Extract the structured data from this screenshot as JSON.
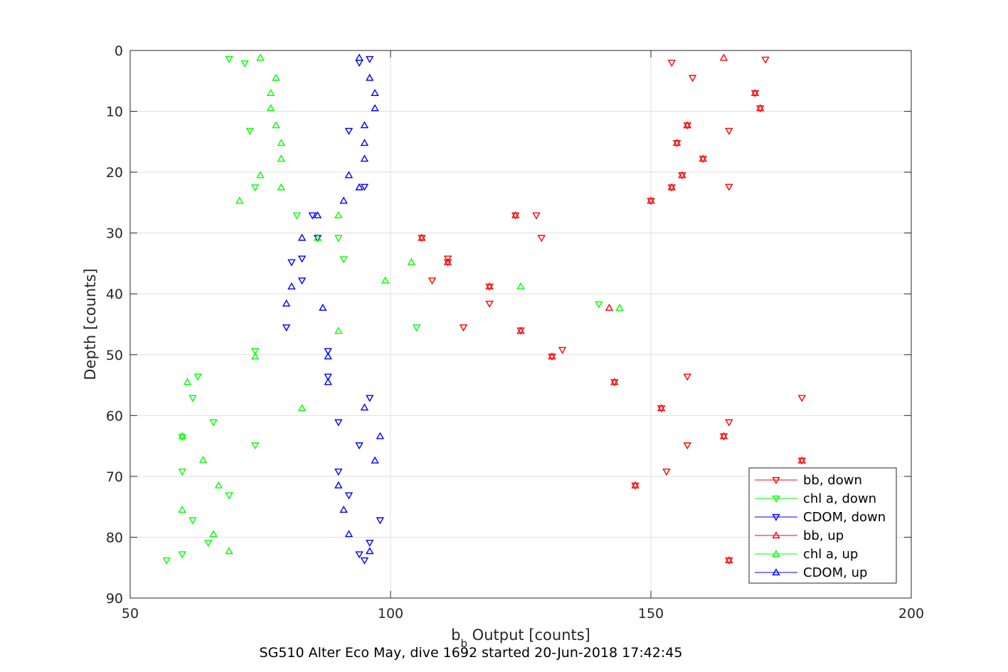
{
  "chart_data": {
    "type": "scatter",
    "xlabel": {
      "prefix": "b",
      "subscript": "b",
      "suffix": " Output [counts]"
    },
    "ylabel": "Depth [counts]",
    "footer": "SG510 Alter Eco May, dive 1692 started 20-Jun-2018 17:42:45",
    "xlim": [
      50,
      200
    ],
    "ylim": [
      0,
      90
    ],
    "y_reversed": true,
    "grid": true,
    "legend_position": "bottom-right",
    "x_ticks": [
      "50",
      "100",
      "150",
      "200"
    ],
    "y_ticks": [
      "0",
      "10",
      "20",
      "30",
      "40",
      "50",
      "60",
      "70",
      "80",
      "90"
    ],
    "series": [
      {
        "name": "bb, down",
        "color": "#ff0000",
        "marker": "triangle-down",
        "x": [
          154,
          172,
          158,
          170,
          171,
          157,
          165,
          155,
          160,
          156,
          154,
          165,
          150,
          128,
          124,
          129,
          106,
          111,
          111,
          108,
          119,
          119,
          114,
          125,
          133,
          131,
          157,
          143,
          179,
          152,
          165,
          157,
          164,
          179,
          153,
          147,
          170,
          165
        ],
        "y": [
          2.0,
          1.5,
          4.5,
          7.0,
          9.5,
          12.3,
          13.2,
          15.2,
          17.8,
          20.5,
          22.5,
          22.4,
          24.7,
          27.1,
          27.1,
          30.8,
          30.8,
          34.2,
          34.8,
          37.8,
          38.8,
          41.6,
          45.5,
          46.0,
          49.2,
          50.3,
          53.6,
          54.5,
          57.1,
          58.8,
          61.1,
          64.9,
          63.4,
          67.4,
          69.2,
          71.5,
          82.6,
          83.8
        ]
      },
      {
        "name": "chl a, down",
        "color": "#00ff00",
        "marker": "triangle-down",
        "x": [
          69,
          72,
          73,
          74,
          82,
          90,
          91,
          105,
          140,
          63,
          74,
          62,
          66,
          60,
          74,
          60,
          69,
          62,
          65,
          60,
          57
        ],
        "y": [
          1.4,
          2.1,
          13.2,
          22.5,
          27.1,
          30.8,
          34.3,
          45.5,
          41.7,
          53.6,
          49.4,
          57.1,
          61.1,
          69.2,
          64.9,
          82.8,
          73.1,
          77.2,
          80.9,
          63.5,
          83.8
        ]
      },
      {
        "name": "CDOM, down",
        "color": "#0000ff",
        "marker": "triangle-down",
        "x": [
          94,
          96,
          92,
          95,
          85,
          86,
          80,
          83,
          83,
          81,
          88,
          88,
          90,
          96,
          94,
          90,
          92,
          98,
          96,
          94,
          95
        ],
        "y": [
          2.0,
          1.4,
          13.2,
          22.4,
          27.1,
          30.8,
          45.5,
          37.8,
          34.2,
          34.8,
          49.4,
          53.6,
          61.1,
          57.1,
          64.9,
          69.2,
          73.1,
          77.2,
          80.9,
          82.8,
          83.8
        ]
      },
      {
        "name": "bb, up",
        "color": "#ff0000",
        "marker": "triangle-up",
        "x": [
          164,
          157,
          170,
          171,
          157,
          155,
          160,
          156,
          154,
          150,
          124,
          106,
          111,
          119,
          142,
          125,
          131,
          143,
          152,
          164,
          179,
          147,
          170,
          165
        ],
        "y": [
          1.2,
          12.3,
          7.0,
          9.5,
          12.3,
          15.2,
          17.8,
          20.5,
          22.5,
          24.7,
          27.1,
          30.8,
          34.8,
          38.8,
          42.3,
          46.1,
          50.3,
          54.5,
          58.8,
          63.4,
          67.4,
          71.5,
          82.6,
          83.8
        ]
      },
      {
        "name": "chl a, up",
        "color": "#00ff00",
        "marker": "triangle-up",
        "x": [
          75,
          78,
          77,
          77,
          78,
          79,
          79,
          75,
          79,
          71,
          90,
          86,
          104,
          99,
          125,
          144,
          90,
          74,
          61,
          83,
          60,
          64,
          67,
          60,
          66,
          69
        ],
        "y": [
          1.2,
          4.5,
          7.0,
          9.5,
          12.3,
          15.2,
          17.8,
          20.5,
          22.5,
          24.7,
          27.1,
          30.8,
          34.8,
          37.8,
          38.8,
          42.3,
          46.1,
          50.3,
          54.5,
          58.8,
          63.4,
          67.3,
          71.5,
          75.5,
          79.5,
          82.3
        ]
      },
      {
        "name": "CDOM, up",
        "color": "#0000ff",
        "marker": "triangle-up",
        "x": [
          94,
          96,
          97,
          97,
          95,
          95,
          95,
          92,
          94,
          91,
          86,
          83,
          81,
          80,
          87,
          88,
          88,
          95,
          98,
          97,
          90,
          91,
          92,
          96
        ],
        "y": [
          1.2,
          4.5,
          7.0,
          9.5,
          12.3,
          15.2,
          17.8,
          20.5,
          22.5,
          24.7,
          27.1,
          30.8,
          38.8,
          41.6,
          42.3,
          50.3,
          54.5,
          58.7,
          63.4,
          67.4,
          71.5,
          75.5,
          79.5,
          82.3
        ]
      }
    ]
  }
}
